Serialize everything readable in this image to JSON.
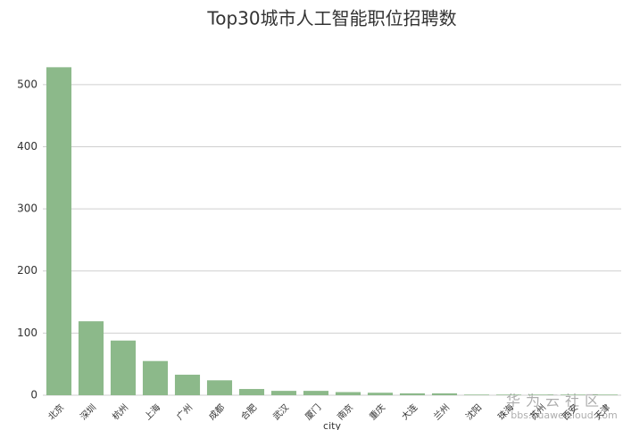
{
  "chart_data": {
    "type": "bar",
    "title": "Top30城市人工智能职位招聘数",
    "x_label": "city",
    "categories": [
      "北京",
      "深圳",
      "杭州",
      "上海",
      "广州",
      "成都",
      "合肥",
      "武汉",
      "厦门",
      "南京",
      "重庆",
      "大连",
      "兰州",
      "沈阳",
      "珠海",
      "苏州",
      "西安",
      "天津"
    ],
    "values": [
      528,
      119,
      88,
      55,
      33,
      24,
      10,
      7,
      7,
      5,
      4,
      3,
      3,
      1,
      1,
      1,
      1,
      1
    ],
    "color": "#8cb98a",
    "ylim": [
      0,
      540
    ],
    "yticks": [
      0,
      100,
      200,
      300,
      400,
      500
    ],
    "grid": true
  },
  "watermark": {
    "title": "华为云社区",
    "url": "bbs.huaweicloud.com"
  }
}
